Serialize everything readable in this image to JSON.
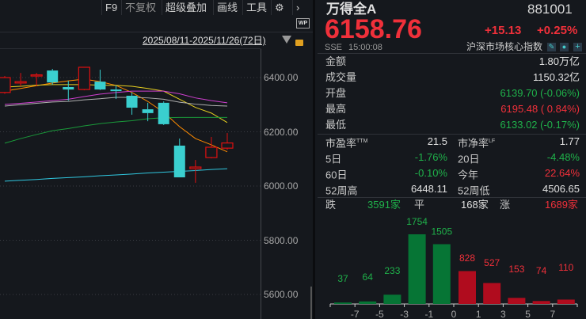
{
  "toolbar": {
    "items": [
      "F9",
      "不复权",
      "超级叠加",
      "画线",
      "工具"
    ],
    "settings_icon": "gear-icon",
    "more_icon": "chevron-right-icon",
    "wp_label": "WP"
  },
  "chart_header": {
    "date_range": "2025/08/11-2025/11/26(72日)",
    "dropdown_icon": "triangle-down-icon",
    "lock_icon": "unlock-icon"
  },
  "chart_data": {
    "type": "candlestick",
    "y_ticks": [
      "6400.00",
      "6200.00",
      "6000.00",
      "5800.00",
      "5600.00"
    ],
    "y_tick_values": [
      6400,
      6200,
      6000,
      5800,
      5600
    ],
    "candles": [
      {
        "o": 6345,
        "h": 6406,
        "l": 6340,
        "c": 6400
      },
      {
        "o": 6380,
        "h": 6417,
        "l": 6368,
        "c": 6385
      },
      {
        "o": 6408,
        "h": 6417,
        "l": 6368,
        "c": 6410
      },
      {
        "o": 6426,
        "h": 6432,
        "l": 6374,
        "c": 6382
      },
      {
        "o": 6365,
        "h": 6388,
        "l": 6315,
        "c": 6356
      },
      {
        "o": 6356,
        "h": 6438,
        "l": 6353,
        "c": 6438
      },
      {
        "o": 6385,
        "h": 6429,
        "l": 6354,
        "c": 6356
      },
      {
        "o": 6356,
        "h": 6371,
        "l": 6321,
        "c": 6350
      },
      {
        "o": 6333,
        "h": 6345,
        "l": 6263,
        "c": 6289
      },
      {
        "o": 6283,
        "h": 6307,
        "l": 6239,
        "c": 6269
      },
      {
        "o": 6307,
        "h": 6312,
        "l": 6225,
        "c": 6228
      },
      {
        "o": 6149,
        "h": 6175,
        "l": 6032,
        "c": 6032
      },
      {
        "o": 6064,
        "h": 6096,
        "l": 6012,
        "c": 6070
      },
      {
        "o": 6105,
        "h": 6181,
        "l": 6102,
        "c": 6143
      },
      {
        "o": 6139.7,
        "h": 6195.48,
        "l": 6133.02,
        "c": 6158.76
      }
    ],
    "ma_lines": [
      {
        "color": "#ff8c00",
        "values": [
          6350,
          6360,
          6370,
          6380,
          6388,
          6394,
          6385,
          6371,
          6345,
          6312,
          6272,
          6219,
          6175,
          6152,
          6126
        ]
      },
      {
        "color": "#e8d020",
        "values": [
          6365,
          6368,
          6372,
          6374,
          6374,
          6374,
          6372,
          6371,
          6368,
          6360,
          6350,
          6320,
          6290,
          6269,
          6234
        ]
      },
      {
        "color": "#d040d0",
        "values": [
          6301,
          6305,
          6310,
          6315,
          6320,
          6330,
          6339,
          6345,
          6350,
          6350,
          6350,
          6340,
          6325,
          6315,
          6307
        ]
      },
      {
        "color": "#b0b0b0",
        "values": [
          6295,
          6300,
          6305,
          6310,
          6312,
          6318,
          6322,
          6327,
          6327,
          6325,
          6320,
          6309,
          6302,
          6297,
          6295
        ]
      },
      {
        "color": "#1a9a3a",
        "values": [
          6158,
          6175,
          6190,
          6204,
          6212,
          6222,
          6230,
          6236,
          6241,
          6248,
          6252,
          6253,
          6253,
          6253,
          6253
        ]
      },
      {
        "color": "#30c8e0",
        "values": [
          6018,
          6021,
          6024,
          6028,
          6031,
          6034,
          6038,
          6041,
          6044,
          6048,
          6051,
          6054,
          6057,
          6061,
          6064
        ]
      }
    ],
    "up_color": "#e01010",
    "down_color": "#3acfcf"
  },
  "quote": {
    "name": "万得全A",
    "code": "881001",
    "price": "6158.76",
    "change": "+15.13",
    "change_pct": "+0.25%",
    "exchange": "SSE",
    "time": "15:00:08",
    "category": "沪深市场核心指数",
    "icons": [
      "edit-icon",
      "bell-icon",
      "plus-icon"
    ]
  },
  "stats": [
    {
      "label": "金额",
      "value": "1.80万亿",
      "color": "w"
    },
    {
      "label": "成交量",
      "value": "1150.32亿",
      "color": "w"
    },
    {
      "label": "开盘",
      "value": "6139.70 (-0.06%)",
      "color": "g"
    },
    {
      "label": "最高",
      "value": "6195.48 ( 0.84%)",
      "color": "r"
    },
    {
      "label": "最低",
      "value": "6133.02 (-0.17%)",
      "color": "g"
    }
  ],
  "grid": [
    {
      "l1": "市盈率",
      "s1": "TTM",
      "v1": "21.5",
      "c1": "w",
      "l2": "市净率",
      "s2": "LF",
      "v2": "1.77",
      "c2": "w"
    },
    {
      "l1": "5日",
      "s1": "",
      "v1": "-1.76%",
      "c1": "g",
      "l2": "20日",
      "s2": "",
      "v2": "-4.48%",
      "c2": "g"
    },
    {
      "l1": "60日",
      "s1": "",
      "v1": "-0.10%",
      "c1": "g",
      "l2": "今年",
      "s2": "",
      "v2": "22.64%",
      "c2": "r"
    },
    {
      "l1": "52周高",
      "s1": "",
      "v1": "6448.11",
      "c1": "w",
      "l2": "52周低",
      "s2": "",
      "v2": "4506.65",
      "c2": "w"
    }
  ],
  "breadth": {
    "down_label": "跌",
    "down": "3591家",
    "flat_label": "平",
    "flat": "168家",
    "up_label": "涨",
    "up": "1689家"
  },
  "distribution": {
    "type": "bar",
    "values": [
      37,
      64,
      233,
      1754,
      1505,
      828,
      527,
      153,
      74,
      110
    ],
    "x_ticks": [
      "-7",
      "-5",
      "-3",
      "-1",
      "0",
      "1",
      "3",
      "5",
      "7"
    ],
    "down_color": "#067535",
    "up_color": "#b00c1e"
  }
}
